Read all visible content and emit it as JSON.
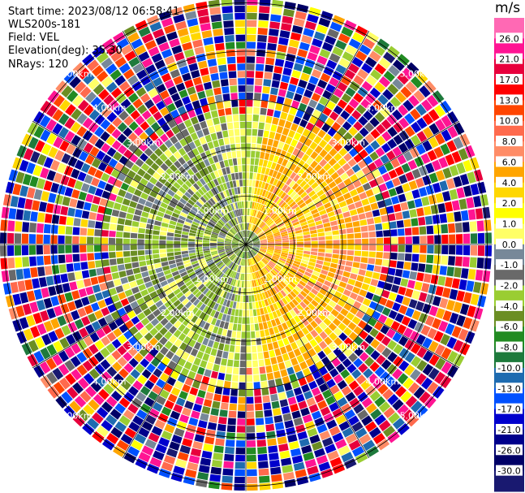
{
  "info": {
    "start_time": "Start time: 2023/08/12 06:58:41",
    "instrument": "WLS200s-181",
    "field": "Field: VEL",
    "elevation": "Elevation(deg): 35.30",
    "nrays": "NRays: 120"
  },
  "chart_data": {
    "type": "heatmap",
    "projection": "polar",
    "field": "VEL",
    "n_rays": 120,
    "range_rings_km": [
      1.0,
      2.0,
      3.0,
      4.0,
      5.0
    ],
    "range_ring_labels": [
      "1.00km",
      "2.00km",
      "3.00km",
      "4.00km",
      "5.00km"
    ],
    "max_range_km": 5.1,
    "grid": true,
    "colorbar": {
      "title": "m/s",
      "placement": "right",
      "ticks": [
        "26.0",
        "21.0",
        "17.0",
        "13.0",
        "10.0",
        "8.0",
        "6.0",
        "4.0",
        "2.0",
        "1.0",
        "0.0",
        "-1.0",
        "-2.0",
        "-4.0",
        "-6.0",
        "-8.0",
        "-10.0",
        "-13.0",
        "-17.0",
        "-21.0",
        "-26.0",
        "-30.0"
      ],
      "colors": [
        "#ff69b4",
        "#ff1493",
        "#e8003c",
        "#ff0000",
        "#ff4500",
        "#ff6a4d",
        "#ff8c66",
        "#ffa500",
        "#ffd700",
        "#ffff00",
        "#ffff66",
        "#778899",
        "#696969",
        "#9acd32",
        "#6b8e23",
        "#228b22",
        "#1e7a3c",
        "#1e6bb0",
        "#0050ff",
        "#0000cd",
        "#00008b",
        "#000066",
        "#191970"
      ]
    },
    "pattern": {
      "center_region_km": 1.0,
      "center_values_ms": [
        -4.0,
        -2.0,
        0.0
      ],
      "east_values_ms": [
        2.0,
        4.0,
        6.0
      ],
      "west_values_ms": [
        -2.0,
        -4.0,
        -6.0
      ],
      "noise_beyond_km": 2.6
    }
  }
}
